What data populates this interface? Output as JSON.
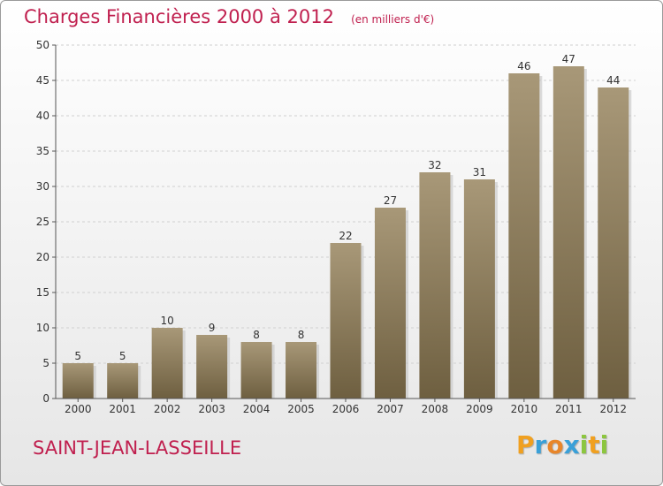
{
  "title": "Charges Financières 2000 à 2012",
  "subtitle": "(en milliers d'€)",
  "commune": "SAINT-JEAN-LASSEILLE",
  "logo": {
    "text": "Proxiti",
    "letters": [
      {
        "ch": "P",
        "color": "#f0a020"
      },
      {
        "ch": "r",
        "color": "#3aa0d8"
      },
      {
        "ch": "o",
        "color": "#e8862a"
      },
      {
        "ch": "x",
        "color": "#3aa0d8"
      },
      {
        "ch": "i",
        "color": "#8cc63f"
      },
      {
        "ch": "t",
        "color": "#f0a020"
      },
      {
        "ch": "i",
        "color": "#8cc63f"
      }
    ]
  },
  "colors": {
    "title": "#c0204f",
    "bar_top": "#a89878",
    "bar_bottom": "#6e5f40",
    "bar_shadow": "#c4c4c4",
    "grid": "#d0d0d0",
    "axis": "#555555"
  },
  "chart_data": {
    "type": "bar",
    "categories": [
      "2000",
      "2001",
      "2002",
      "2003",
      "2004",
      "2005",
      "2006",
      "2007",
      "2008",
      "2009",
      "2010",
      "2011",
      "2012"
    ],
    "values": [
      5,
      5,
      10,
      9,
      8,
      8,
      22,
      27,
      32,
      31,
      46,
      47,
      44
    ],
    "ylim": [
      0,
      50
    ],
    "yticks": [
      0,
      5,
      10,
      15,
      20,
      25,
      30,
      35,
      40,
      45,
      50
    ],
    "xlabel": "",
    "ylabel": "",
    "grid": true,
    "data_labels": true
  }
}
